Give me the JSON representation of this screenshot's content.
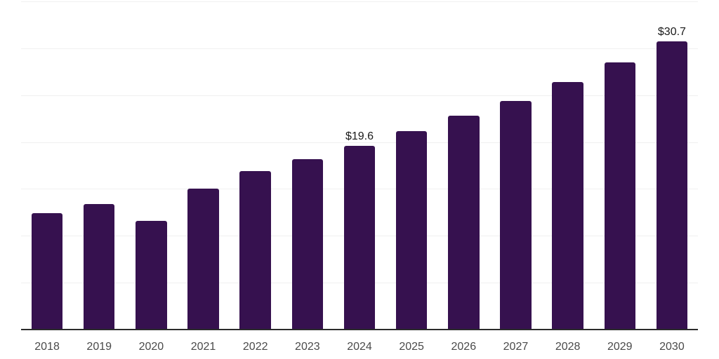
{
  "chart_data": {
    "type": "bar",
    "title": "",
    "xlabel": "",
    "ylabel": "",
    "categories": [
      "2018",
      "2019",
      "2020",
      "2021",
      "2022",
      "2023",
      "2024",
      "2025",
      "2026",
      "2027",
      "2028",
      "2029",
      "2030"
    ],
    "values": [
      12.4,
      13.4,
      11.6,
      15.0,
      16.9,
      18.2,
      19.6,
      21.2,
      22.8,
      24.4,
      26.4,
      28.5,
      30.7
    ],
    "data_labels": [
      null,
      null,
      null,
      null,
      null,
      null,
      "$19.6",
      null,
      null,
      null,
      null,
      null,
      "$30.7"
    ],
    "ylim": [
      0,
      35
    ],
    "gridline_step": 5,
    "grid": "horizontal",
    "legend_position": "none",
    "y_tick_labels_visible": false,
    "colors": {
      "bar": "#36114F",
      "background": "#ffffff",
      "gridline": "#f0f0f0",
      "axis_line": "#2b2b2b",
      "x_tick_label": "#4a4a4a",
      "data_label": "#1a1a1a"
    }
  }
}
